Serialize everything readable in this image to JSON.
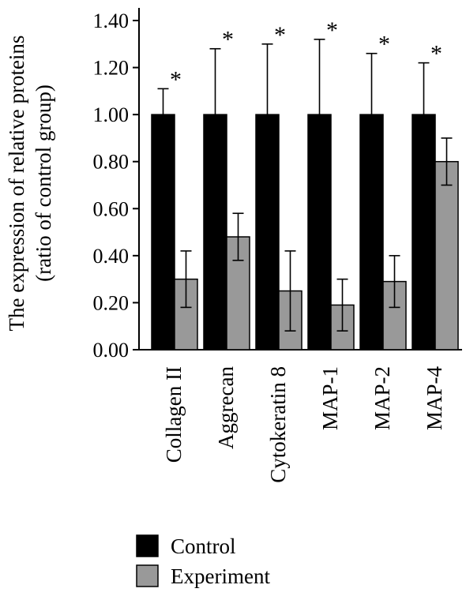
{
  "chart_data": {
    "type": "bar",
    "ylabel_line1": "The expression of relative proteins",
    "ylabel_line2": "(ratio of control group)",
    "categories": [
      "Collagen II",
      "Aggrecan",
      "Cytokeratin 8",
      "MAP-1",
      "MAP-2",
      "MAP-4"
    ],
    "series": [
      {
        "name": "Control",
        "color": "#000000",
        "values": [
          1.0,
          1.0,
          1.0,
          1.0,
          1.0,
          1.0
        ],
        "errors": [
          0.11,
          0.28,
          0.3,
          0.32,
          0.26,
          0.22
        ]
      },
      {
        "name": "Experiment",
        "color": "#999999",
        "values": [
          0.3,
          0.48,
          0.25,
          0.19,
          0.29,
          0.8
        ],
        "errors": [
          0.12,
          0.1,
          0.17,
          0.11,
          0.11,
          0.1
        ]
      }
    ],
    "significance_marker": "*",
    "ylim": [
      0,
      1.4
    ],
    "yticks": [
      "0.00",
      "0.20",
      "0.40",
      "0.60",
      "0.80",
      "1.00",
      "1.20",
      "1.40"
    ],
    "legend_position": "bottom-left",
    "grid": false
  }
}
